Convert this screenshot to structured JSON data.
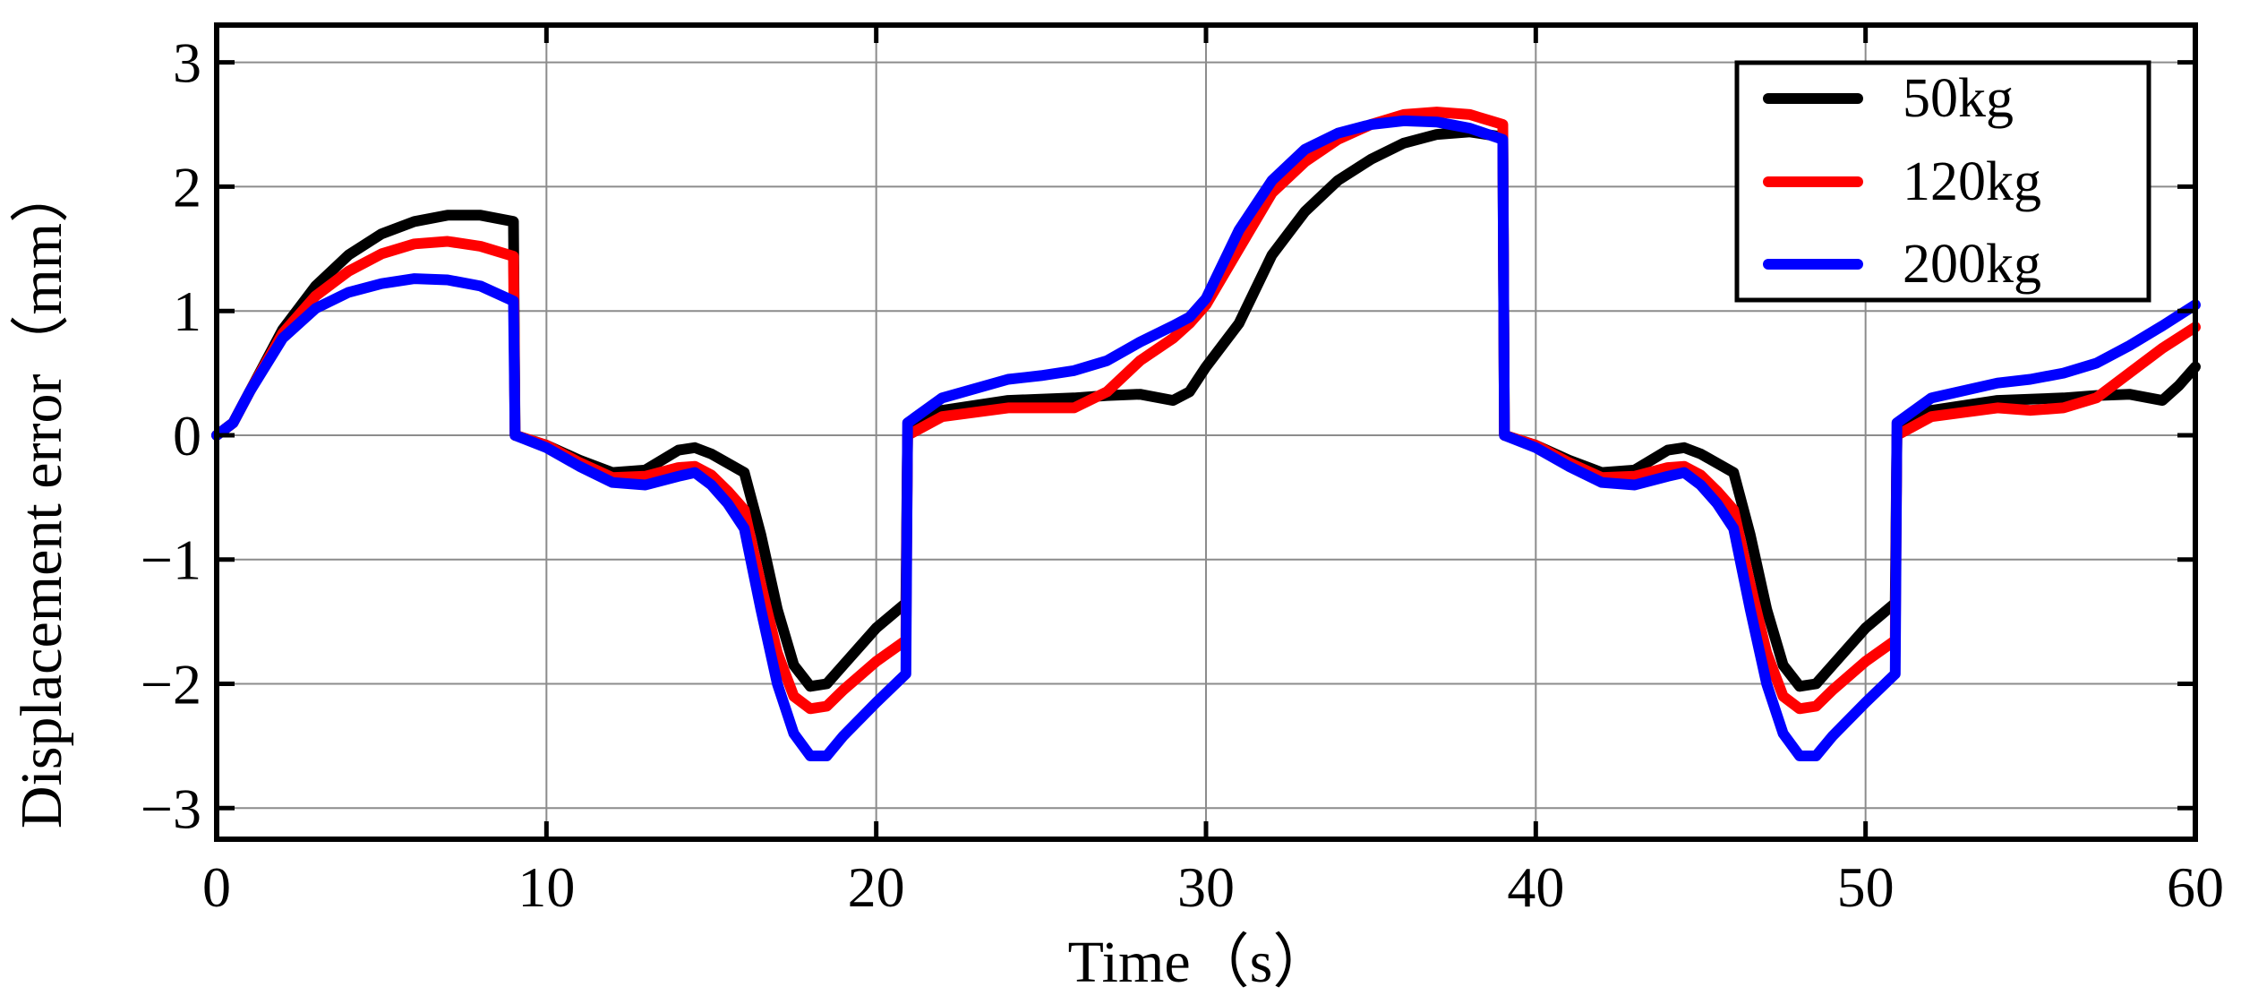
{
  "chart_data": {
    "type": "line",
    "title": "",
    "xlabel": "Time（s）",
    "ylabel": "Displacement error（mm）",
    "xlim": [
      0,
      60
    ],
    "ylim": [
      -3.25,
      3.3
    ],
    "xticks": [
      0,
      10,
      20,
      30,
      40,
      50,
      60
    ],
    "yticks": [
      3,
      2,
      1,
      0,
      -1,
      -2,
      -3
    ],
    "xtick_labels": [
      "0",
      "10",
      "20",
      "30",
      "40",
      "50",
      "60"
    ],
    "ytick_labels": [
      "3",
      "2",
      "1",
      "0",
      "−1",
      "−2",
      "−3"
    ],
    "grid": true,
    "legend_position": "top-right",
    "series": [
      {
        "name": "50kg",
        "color": "#000000",
        "points": [
          [
            0,
            0
          ],
          [
            0.5,
            0.1
          ],
          [
            1,
            0.35
          ],
          [
            2,
            0.85
          ],
          [
            3,
            1.2
          ],
          [
            4,
            1.45
          ],
          [
            5,
            1.62
          ],
          [
            6,
            1.72
          ],
          [
            7,
            1.77
          ],
          [
            8,
            1.77
          ],
          [
            9,
            1.72
          ],
          [
            9.05,
            0
          ],
          [
            10,
            -0.08
          ],
          [
            11,
            -0.2
          ],
          [
            12,
            -0.3
          ],
          [
            13,
            -0.28
          ],
          [
            14,
            -0.12
          ],
          [
            14.5,
            -0.1
          ],
          [
            15,
            -0.15
          ],
          [
            16,
            -0.3
          ],
          [
            16.5,
            -0.8
          ],
          [
            17,
            -1.4
          ],
          [
            17.5,
            -1.85
          ],
          [
            18,
            -2.02
          ],
          [
            18.5,
            -2.0
          ],
          [
            19,
            -1.85
          ],
          [
            20,
            -1.55
          ],
          [
            20.9,
            -1.35
          ],
          [
            20.95,
            0
          ],
          [
            22,
            0.2
          ],
          [
            24,
            0.28
          ],
          [
            26,
            0.3
          ],
          [
            27,
            0.32
          ],
          [
            28,
            0.33
          ],
          [
            29,
            0.28
          ],
          [
            29.5,
            0.35
          ],
          [
            30,
            0.55
          ],
          [
            31,
            0.9
          ],
          [
            32,
            1.45
          ],
          [
            33,
            1.8
          ],
          [
            34,
            2.05
          ],
          [
            35,
            2.22
          ],
          [
            36,
            2.35
          ],
          [
            37,
            2.42
          ],
          [
            38,
            2.44
          ],
          [
            39,
            2.4
          ],
          [
            39.05,
            0
          ],
          [
            40,
            -0.08
          ],
          [
            41,
            -0.2
          ],
          [
            42,
            -0.3
          ],
          [
            43,
            -0.28
          ],
          [
            44,
            -0.12
          ],
          [
            44.5,
            -0.1
          ],
          [
            45,
            -0.15
          ],
          [
            46,
            -0.3
          ],
          [
            46.5,
            -0.8
          ],
          [
            47,
            -1.4
          ],
          [
            47.5,
            -1.85
          ],
          [
            48,
            -2.02
          ],
          [
            48.5,
            -2.0
          ],
          [
            49,
            -1.85
          ],
          [
            50,
            -1.55
          ],
          [
            50.9,
            -1.35
          ],
          [
            50.95,
            0
          ],
          [
            52,
            0.2
          ],
          [
            54,
            0.28
          ],
          [
            56,
            0.3
          ],
          [
            57,
            0.32
          ],
          [
            58,
            0.33
          ],
          [
            59,
            0.28
          ],
          [
            59.5,
            0.4
          ],
          [
            60,
            0.55
          ]
        ]
      },
      {
        "name": "120kg",
        "color": "#ff0000",
        "points": [
          [
            0,
            0
          ],
          [
            0.5,
            0.1
          ],
          [
            1,
            0.35
          ],
          [
            2,
            0.82
          ],
          [
            3,
            1.12
          ],
          [
            4,
            1.32
          ],
          [
            5,
            1.46
          ],
          [
            6,
            1.54
          ],
          [
            7,
            1.56
          ],
          [
            8,
            1.52
          ],
          [
            9,
            1.44
          ],
          [
            9.05,
            0
          ],
          [
            10,
            -0.08
          ],
          [
            11,
            -0.22
          ],
          [
            12,
            -0.34
          ],
          [
            13,
            -0.33
          ],
          [
            14,
            -0.26
          ],
          [
            14.5,
            -0.25
          ],
          [
            15,
            -0.32
          ],
          [
            15.5,
            -0.45
          ],
          [
            16,
            -0.6
          ],
          [
            16.5,
            -1.2
          ],
          [
            17,
            -1.75
          ],
          [
            17.5,
            -2.1
          ],
          [
            18,
            -2.2
          ],
          [
            18.5,
            -2.18
          ],
          [
            19,
            -2.05
          ],
          [
            20,
            -1.82
          ],
          [
            20.9,
            -1.65
          ],
          [
            20.95,
            0
          ],
          [
            22,
            0.15
          ],
          [
            24,
            0.22
          ],
          [
            25,
            0.22
          ],
          [
            26,
            0.22
          ],
          [
            27,
            0.35
          ],
          [
            28,
            0.6
          ],
          [
            29,
            0.78
          ],
          [
            29.5,
            0.9
          ],
          [
            30,
            1.05
          ],
          [
            31,
            1.5
          ],
          [
            32,
            1.95
          ],
          [
            33,
            2.2
          ],
          [
            34,
            2.38
          ],
          [
            35,
            2.5
          ],
          [
            36,
            2.58
          ],
          [
            37,
            2.6
          ],
          [
            38,
            2.58
          ],
          [
            39,
            2.5
          ],
          [
            39.05,
            0
          ],
          [
            40,
            -0.08
          ],
          [
            41,
            -0.22
          ],
          [
            42,
            -0.34
          ],
          [
            43,
            -0.33
          ],
          [
            44,
            -0.26
          ],
          [
            44.5,
            -0.25
          ],
          [
            45,
            -0.32
          ],
          [
            45.5,
            -0.45
          ],
          [
            46,
            -0.6
          ],
          [
            46.5,
            -1.2
          ],
          [
            47,
            -1.75
          ],
          [
            47.5,
            -2.1
          ],
          [
            48,
            -2.2
          ],
          [
            48.5,
            -2.18
          ],
          [
            49,
            -2.05
          ],
          [
            50,
            -1.82
          ],
          [
            50.9,
            -1.65
          ],
          [
            50.95,
            0
          ],
          [
            52,
            0.15
          ],
          [
            54,
            0.22
          ],
          [
            55,
            0.2
          ],
          [
            56,
            0.22
          ],
          [
            57,
            0.3
          ],
          [
            58,
            0.5
          ],
          [
            59,
            0.7
          ],
          [
            60,
            0.87
          ]
        ]
      },
      {
        "name": "200kg",
        "color": "#0000ff",
        "points": [
          [
            0,
            0
          ],
          [
            0.5,
            0.1
          ],
          [
            1,
            0.35
          ],
          [
            2,
            0.78
          ],
          [
            3,
            1.02
          ],
          [
            4,
            1.15
          ],
          [
            5,
            1.22
          ],
          [
            6,
            1.26
          ],
          [
            7,
            1.25
          ],
          [
            8,
            1.2
          ],
          [
            9,
            1.08
          ],
          [
            9.05,
            0
          ],
          [
            10,
            -0.1
          ],
          [
            11,
            -0.25
          ],
          [
            12,
            -0.38
          ],
          [
            13,
            -0.4
          ],
          [
            14,
            -0.33
          ],
          [
            14.5,
            -0.3
          ],
          [
            15,
            -0.4
          ],
          [
            15.5,
            -0.55
          ],
          [
            16,
            -0.75
          ],
          [
            16.5,
            -1.4
          ],
          [
            17,
            -2.0
          ],
          [
            17.5,
            -2.4
          ],
          [
            18,
            -2.58
          ],
          [
            18.5,
            -2.58
          ],
          [
            19,
            -2.42
          ],
          [
            20,
            -2.15
          ],
          [
            20.9,
            -1.92
          ],
          [
            20.95,
            0.1
          ],
          [
            22,
            0.3
          ],
          [
            24,
            0.45
          ],
          [
            25,
            0.48
          ],
          [
            26,
            0.52
          ],
          [
            27,
            0.6
          ],
          [
            28,
            0.75
          ],
          [
            29,
            0.88
          ],
          [
            29.5,
            0.95
          ],
          [
            30,
            1.1
          ],
          [
            31,
            1.65
          ],
          [
            32,
            2.05
          ],
          [
            33,
            2.3
          ],
          [
            34,
            2.43
          ],
          [
            35,
            2.5
          ],
          [
            36,
            2.53
          ],
          [
            37,
            2.52
          ],
          [
            38,
            2.47
          ],
          [
            39,
            2.38
          ],
          [
            39.05,
            0
          ],
          [
            40,
            -0.1
          ],
          [
            41,
            -0.25
          ],
          [
            42,
            -0.38
          ],
          [
            43,
            -0.4
          ],
          [
            44,
            -0.33
          ],
          [
            44.5,
            -0.3
          ],
          [
            45,
            -0.4
          ],
          [
            45.5,
            -0.55
          ],
          [
            46,
            -0.75
          ],
          [
            46.5,
            -1.4
          ],
          [
            47,
            -2.0
          ],
          [
            47.5,
            -2.4
          ],
          [
            48,
            -2.58
          ],
          [
            48.5,
            -2.58
          ],
          [
            49,
            -2.42
          ],
          [
            50,
            -2.15
          ],
          [
            50.9,
            -1.92
          ],
          [
            50.95,
            0.1
          ],
          [
            52,
            0.3
          ],
          [
            54,
            0.42
          ],
          [
            55,
            0.45
          ],
          [
            56,
            0.5
          ],
          [
            57,
            0.58
          ],
          [
            58,
            0.72
          ],
          [
            59,
            0.88
          ],
          [
            60,
            1.05
          ]
        ]
      }
    ]
  }
}
